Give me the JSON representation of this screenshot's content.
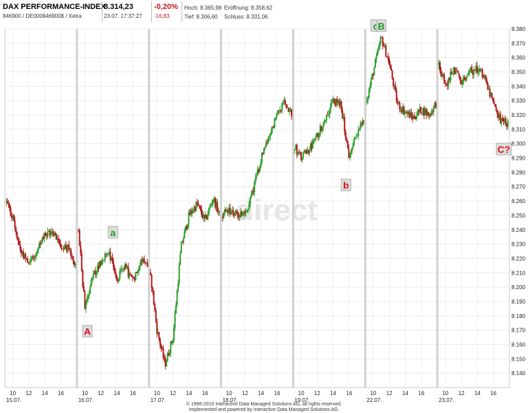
{
  "header": {
    "title": "DAX PERFORMANCE-INDEX",
    "subtitle": "846900 / DE0008469008 / Xetra",
    "price": "8.314,23",
    "timestamp": "23.07. 17:37:27",
    "change_pct": "-0,20%",
    "change_abs": "-16,83",
    "high": "Hoch: 8.365,98",
    "low": "Tief: 8.306,60",
    "open": "Eröffnung: 8.358,62",
    "close": "Schluss: 8.331,06"
  },
  "watermark": "direct",
  "footer": {
    "line1": "© 1996-2010 Interactive Data Managed Solutions AG, all rights reserved.",
    "line2": "Implemented and powered by Interactive Data Managed Solutions AG."
  },
  "chart_data": {
    "type": "candlestick",
    "colors": {
      "up": "#2e9e2e",
      "down": "#b01818",
      "wave_up": "#1f9a1f",
      "wave_down": "#e0141e"
    },
    "ylim": [
      8130,
      8380
    ],
    "y_ticks": [
      8140,
      8150,
      8160,
      8170,
      8180,
      8190,
      8200,
      8210,
      8220,
      8230,
      8240,
      8250,
      8260,
      8270,
      8280,
      8290,
      8300,
      8310,
      8320,
      8330,
      8340,
      8350,
      8360,
      8370,
      8380
    ],
    "y_tick_labels": [
      "8.140",
      "8.150",
      "8.160",
      "8.170",
      "8.180",
      "8.190",
      "8.200",
      "8.210",
      "8.220",
      "8.230",
      "8.240",
      "8.250",
      "8.260",
      "8.270",
      "8.280",
      "8.290",
      "8.300",
      "8.310",
      "8.320",
      "8.330",
      "8.340",
      "8.350",
      "8.360",
      "8.370",
      "8.380"
    ],
    "hour_ticks": [
      "10",
      "12",
      "14",
      "16"
    ],
    "days": [
      "15.07.",
      "16.07.",
      "17.07.",
      "18.07.",
      "19.07.",
      "22.07.",
      "23.07."
    ],
    "grid": true,
    "series": [
      {
        "day": "15.07.",
        "x": [
          9,
          10,
          11,
          12,
          13,
          14,
          15,
          16,
          17,
          18
        ],
        "y": [
          8262,
          8248,
          8225,
          8218,
          8224,
          8236,
          8238,
          8230,
          8226,
          8214
        ]
      },
      {
        "day": "16.07.",
        "x": [
          9,
          10,
          11,
          12,
          13,
          14,
          15,
          16,
          17,
          18
        ],
        "y": [
          8252,
          8185,
          8207,
          8218,
          8225,
          8205,
          8214,
          8204,
          8220,
          8216
        ]
      },
      {
        "day": "17.07.",
        "x": [
          9,
          10,
          11,
          12,
          13,
          14,
          15,
          16,
          17,
          18
        ],
        "y": [
          8218,
          8170,
          8146,
          8165,
          8228,
          8250,
          8258,
          8246,
          8262,
          8248
        ]
      },
      {
        "day": "18.07.",
        "x": [
          9,
          10,
          11,
          12,
          13,
          14,
          15,
          16,
          17,
          18
        ],
        "y": [
          8250,
          8253,
          8252,
          8250,
          8268,
          8290,
          8306,
          8320,
          8330,
          8318
        ]
      },
      {
        "day": "19.07.",
        "x": [
          9,
          10,
          11,
          12,
          13,
          14,
          15,
          16,
          17,
          18
        ],
        "y": [
          8300,
          8290,
          8296,
          8305,
          8318,
          8330,
          8326,
          8290,
          8308,
          8318
        ]
      },
      {
        "day": "22.07.",
        "x": [
          9,
          10,
          11,
          12,
          13,
          14,
          15,
          16,
          17,
          18
        ],
        "y": [
          8326,
          8350,
          8374,
          8356,
          8328,
          8322,
          8318,
          8324,
          8320,
          8330
        ]
      },
      {
        "day": "23.07.",
        "x": [
          9,
          10,
          11,
          12,
          13,
          14,
          15,
          16,
          17,
          18
        ],
        "y": [
          8358,
          8340,
          8352,
          8344,
          8350,
          8352,
          8346,
          8326,
          8316,
          8314
        ]
      }
    ],
    "annotations": [
      {
        "label": "A",
        "day": "16.07.",
        "hour": 10.3,
        "price": 8169,
        "color_key": "wave_down"
      },
      {
        "label": "a",
        "day": "16.07.",
        "hour": 13.5,
        "price": 8238,
        "color_key": "wave_up"
      },
      {
        "label": "b",
        "day": "19.07.",
        "hour": 15.6,
        "price": 8271,
        "color_key": "wave_down"
      },
      {
        "label": "c",
        "day": "22.07.",
        "hour": 10.3,
        "price": 8382,
        "color_key": "wave_up"
      },
      {
        "label": "B",
        "day": "22.07.",
        "hour": 11.0,
        "price": 8382,
        "color_key": "wave_up"
      },
      {
        "label": "C?",
        "day": "23.07.",
        "hour": 17.3,
        "price": 8296,
        "color_key": "wave_down"
      }
    ]
  }
}
